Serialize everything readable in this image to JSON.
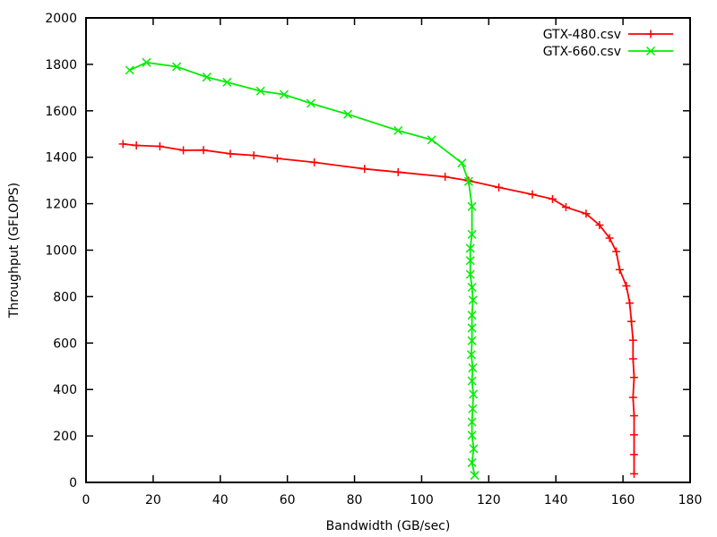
{
  "chart_data": {
    "type": "line",
    "xlabel": "Bandwidth (GB/sec)",
    "ylabel": "Throughput (GFLOPS)",
    "xlim": [
      0,
      180
    ],
    "ylim": [
      0,
      2000
    ],
    "x_ticks": [
      0,
      20,
      40,
      60,
      80,
      100,
      120,
      140,
      160,
      180
    ],
    "y_ticks": [
      0,
      200,
      400,
      600,
      800,
      1000,
      1200,
      1400,
      1600,
      1800,
      2000
    ],
    "grid": false,
    "legend_position": "top-right",
    "series": [
      {
        "name": "GTX-480.csv",
        "color": "#ff0000",
        "marker": "plus",
        "points": [
          [
            11,
            1457
          ],
          [
            15,
            1451
          ],
          [
            22,
            1447
          ],
          [
            29,
            1430
          ],
          [
            35,
            1431
          ],
          [
            43,
            1415
          ],
          [
            50,
            1408
          ],
          [
            57,
            1395
          ],
          [
            68,
            1378
          ],
          [
            83,
            1350
          ],
          [
            93,
            1336
          ],
          [
            107,
            1316
          ],
          [
            114,
            1299
          ],
          [
            123,
            1270
          ],
          [
            133,
            1240
          ],
          [
            139,
            1220
          ],
          [
            143,
            1185
          ],
          [
            149,
            1157
          ],
          [
            153,
            1108
          ],
          [
            156,
            1052
          ],
          [
            158,
            994
          ],
          [
            159,
            916
          ],
          [
            161,
            846
          ],
          [
            162,
            772
          ],
          [
            162.5,
            693
          ],
          [
            163,
            612
          ],
          [
            163,
            532
          ],
          [
            163.3,
            452
          ],
          [
            163,
            366
          ],
          [
            163.3,
            287
          ],
          [
            163.3,
            205
          ],
          [
            163.3,
            120
          ],
          [
            163.3,
            37
          ]
        ]
      },
      {
        "name": "GTX-660.csv",
        "color": "#00ee00",
        "marker": "cross",
        "points": [
          [
            13,
            1775
          ],
          [
            18,
            1808
          ],
          [
            27,
            1790
          ],
          [
            36,
            1745
          ],
          [
            42,
            1723
          ],
          [
            52,
            1685
          ],
          [
            59,
            1670
          ],
          [
            67,
            1632
          ],
          [
            78,
            1585
          ],
          [
            93,
            1515
          ],
          [
            103,
            1475
          ],
          [
            112,
            1375
          ],
          [
            114,
            1296
          ],
          [
            115,
            1188
          ],
          [
            115,
            1068
          ],
          [
            114.5,
            1008
          ],
          [
            114.5,
            955
          ],
          [
            114.5,
            896
          ],
          [
            115,
            840
          ],
          [
            115.3,
            785
          ],
          [
            115,
            720
          ],
          [
            115,
            665
          ],
          [
            115,
            610
          ],
          [
            114.8,
            550
          ],
          [
            115.2,
            493
          ],
          [
            115,
            437
          ],
          [
            115.4,
            380
          ],
          [
            115.2,
            317
          ],
          [
            115,
            260
          ],
          [
            115,
            203
          ],
          [
            115.5,
            145
          ],
          [
            115,
            85
          ],
          [
            115.8,
            30
          ]
        ]
      }
    ]
  }
}
